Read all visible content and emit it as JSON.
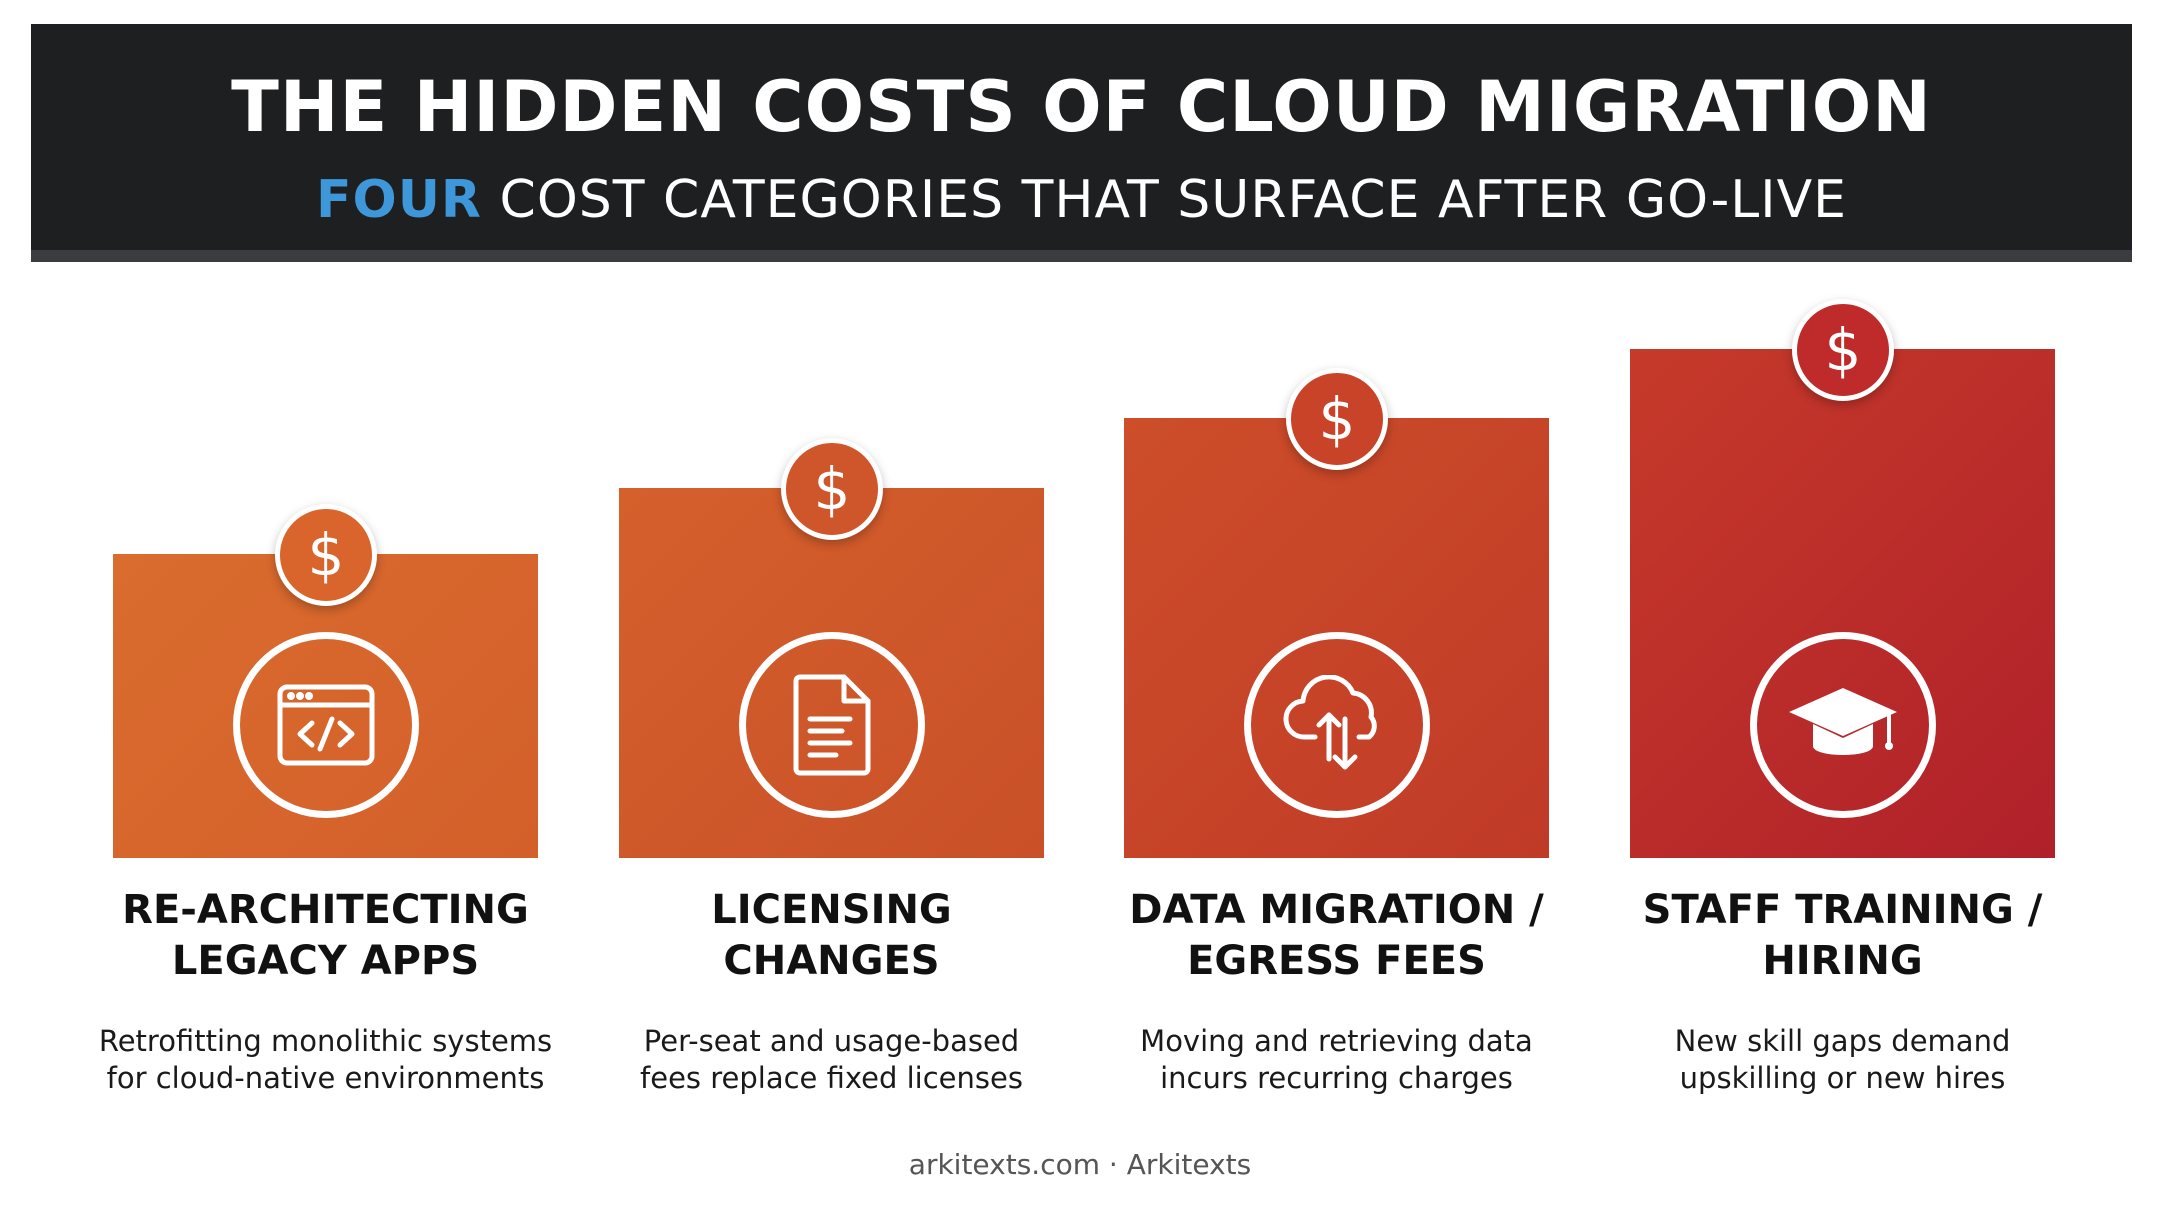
{
  "header": {
    "title": "THE HIDDEN COSTS OF CLOUD MIGRATION",
    "subtitle_accent": "FOUR",
    "subtitle_rest": " COST CATEGORIES THAT SURFACE AFTER GO-LIVE"
  },
  "colors": {
    "header_bg": "#1e1f21",
    "accent_blue": "#3d97d8",
    "orange": "#da6c2e",
    "red": "#b0202a"
  },
  "categories": [
    {
      "icon": "code-window-icon",
      "badge_icon": "dollar-icon",
      "title_line1": "RE-ARCHITECTING",
      "title_line2": "LEGACY APPS",
      "desc_line1": "Retrofitting monolithic systems",
      "desc_line2": "for cloud-native environments"
    },
    {
      "icon": "document-icon",
      "badge_icon": "dollar-icon",
      "title_line1": "LICENSING",
      "title_line2": "CHANGES",
      "desc_line1": "Per-seat and usage-based",
      "desc_line2": "fees replace fixed licenses"
    },
    {
      "icon": "cloud-transfer-icon",
      "badge_icon": "dollar-icon",
      "title_line1": "DATA MIGRATION /",
      "title_line2": "EGRESS FEES",
      "desc_line1": "Moving and retrieving data",
      "desc_line2": "incurs recurring charges"
    },
    {
      "icon": "graduation-cap-icon",
      "badge_icon": "dollar-icon",
      "title_line1": "STAFF TRAINING /",
      "title_line2": "HIRING",
      "desc_line1": "New skill gaps demand",
      "desc_line2": "upskilling or new hires"
    }
  ],
  "footer": {
    "text": "arkitexts.com · Arkitexts"
  }
}
